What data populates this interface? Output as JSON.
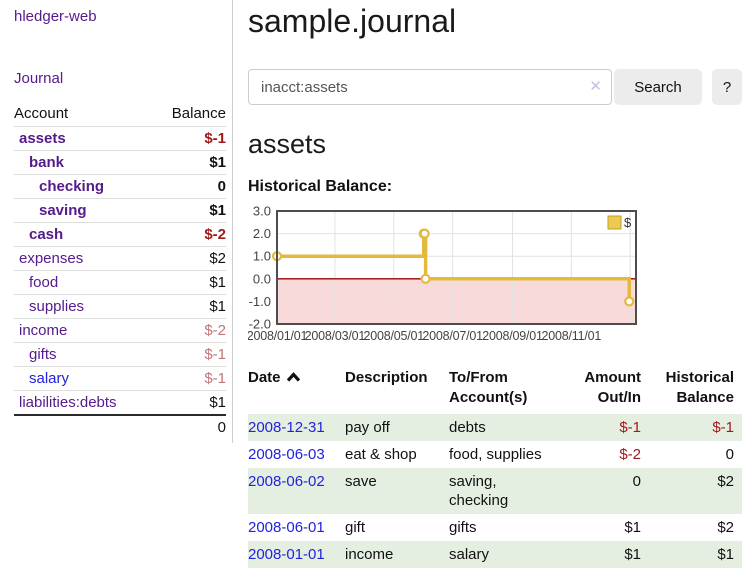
{
  "brand": "hledger-web",
  "nav": {
    "journal": "Journal"
  },
  "sidebar": {
    "header": {
      "account": "Account",
      "balance": "Balance"
    },
    "accounts": [
      {
        "name": "assets",
        "balance": "$-1",
        "depth": 1,
        "bold": true,
        "balance_tone": "neg-strong",
        "name_color": "purple"
      },
      {
        "name": "bank",
        "balance": "$1",
        "depth": 2,
        "bold": true,
        "balance_tone": "normal",
        "name_color": "purple"
      },
      {
        "name": "checking",
        "balance": "0",
        "depth": 3,
        "bold": true,
        "balance_tone": "normal",
        "name_color": "purple"
      },
      {
        "name": "saving",
        "balance": "$1",
        "depth": 3,
        "bold": true,
        "balance_tone": "normal",
        "name_color": "purple"
      },
      {
        "name": "cash",
        "balance": "$-2",
        "depth": 2,
        "bold": true,
        "balance_tone": "neg-strong",
        "name_color": "purple"
      },
      {
        "name": "expenses",
        "balance": "$2",
        "depth": 1,
        "bold": false,
        "balance_tone": "normal",
        "name_color": "purple"
      },
      {
        "name": "food",
        "balance": "$1",
        "depth": 2,
        "bold": false,
        "balance_tone": "normal",
        "name_color": "purple"
      },
      {
        "name": "supplies",
        "balance": "$1",
        "depth": 2,
        "bold": false,
        "balance_tone": "normal",
        "name_color": "purple"
      },
      {
        "name": "income",
        "balance": "$-2",
        "depth": 1,
        "bold": false,
        "balance_tone": "neg-soft",
        "name_color": "purple"
      },
      {
        "name": "gifts",
        "balance": "$-1",
        "depth": 2,
        "bold": false,
        "balance_tone": "neg-soft",
        "name_color": "purple"
      },
      {
        "name": "salary",
        "balance": "$-1",
        "depth": 2,
        "bold": false,
        "balance_tone": "neg-soft",
        "name_color": "blue"
      },
      {
        "name": "liabilities:debts",
        "balance": "$1",
        "depth": 1,
        "bold": false,
        "balance_tone": "normal",
        "name_color": "purple"
      }
    ],
    "total": "0"
  },
  "main": {
    "title": "sample.journal",
    "search": {
      "value": "inacct:assets",
      "clear_icon": "✕",
      "search_button": "Search",
      "help_button": "?"
    },
    "account_title": "assets",
    "chart_title": "Historical Balance:"
  },
  "chart_data": {
    "type": "line",
    "step": true,
    "title": "Historical Balance",
    "series": [
      {
        "name": "$",
        "points": [
          [
            "2008-01-01",
            1
          ],
          [
            "2008-06-01",
            2
          ],
          [
            "2008-06-02",
            2
          ],
          [
            "2008-06-03",
            0
          ],
          [
            "2008-12-31",
            -1
          ]
        ]
      }
    ],
    "x_ticks": [
      "2008/01/01",
      "2008/03/01",
      "2008/05/01",
      "2008/07/01",
      "2008/09/01",
      "2008/11/01"
    ],
    "y_ticks": [
      3.0,
      2.0,
      1.0,
      0.0,
      -1.0,
      -2.0
    ],
    "ylim": [
      -2,
      3
    ],
    "grid": true,
    "legend": {
      "label": "$",
      "position": "top-right"
    },
    "line_color": "#e4ba3e",
    "marker_fill": "#ffffff",
    "negative_region_color": "#f9dada",
    "zero_line_color": "#990000",
    "border_color": "#4d4d4d",
    "grid_color": "#e2e2e2",
    "axis_text_color": "#444444",
    "legend_swatch_fill": "#ecc950",
    "legend_swatch_border": "#bfa028"
  },
  "register": {
    "headers": {
      "date": "Date",
      "description": "Description",
      "accounts": "To/From Account(s)",
      "amount": "Amount Out/In",
      "balance": "Historical Balance"
    },
    "rows": [
      {
        "date": "2008-12-31",
        "description": "pay off",
        "accounts": "debts",
        "amount": "$-1",
        "amount_tone": "neg",
        "balance": "$-1",
        "balance_tone": "neg"
      },
      {
        "date": "2008-06-03",
        "description": "eat & shop",
        "accounts": "food, supplies",
        "amount": "$-2",
        "amount_tone": "neg",
        "balance": "0",
        "balance_tone": "normal"
      },
      {
        "date": "2008-06-02",
        "description": "save",
        "accounts": "saving, checking",
        "amount": "0",
        "amount_tone": "normal",
        "balance": "$2",
        "balance_tone": "normal"
      },
      {
        "date": "2008-06-01",
        "description": "gift",
        "accounts": "gifts",
        "amount": "$1",
        "amount_tone": "normal",
        "balance": "$2",
        "balance_tone": "normal"
      },
      {
        "date": "2008-01-01",
        "description": "income",
        "accounts": "salary",
        "amount": "$1",
        "amount_tone": "normal",
        "balance": "$1",
        "balance_tone": "normal"
      }
    ]
  },
  "colors": {
    "link_purple": "#551a8b",
    "link_blue": "#2222dd",
    "negative_strong": "#a31919",
    "negative_soft": "#c17777",
    "row_stripe_green": "#e4efe2",
    "divider_gray": "#cccccc"
  }
}
